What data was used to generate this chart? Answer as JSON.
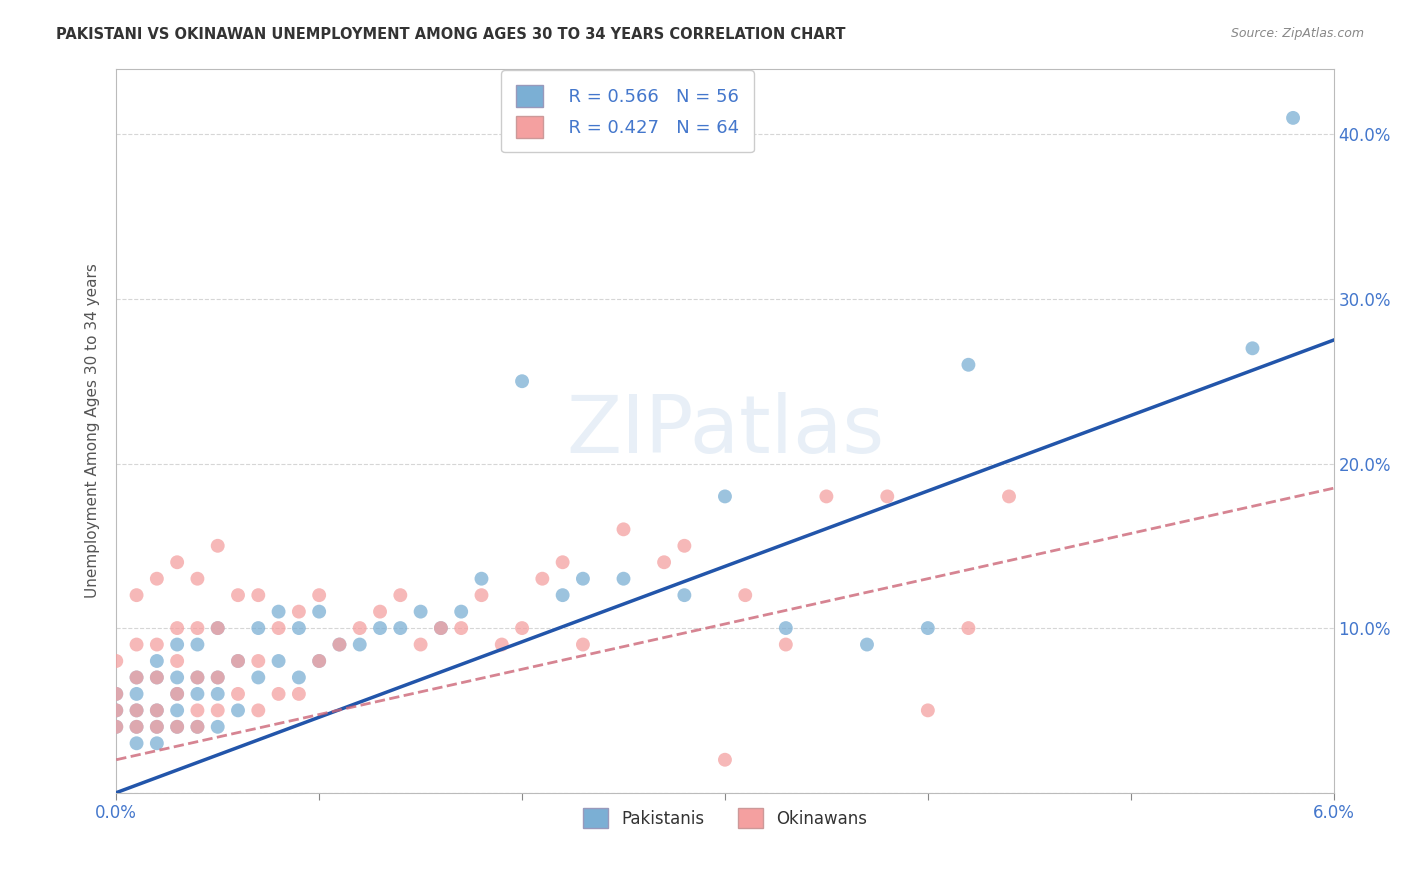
{
  "title": "PAKISTANI VS OKINAWAN UNEMPLOYMENT AMONG AGES 30 TO 34 YEARS CORRELATION CHART",
  "source": "Source: ZipAtlas.com",
  "ylabel_text": "Unemployment Among Ages 30 to 34 years",
  "x_min": 0.0,
  "x_max": 0.06,
  "y_min": 0.0,
  "y_max": 0.44,
  "x_ticks": [
    0.0,
    0.01,
    0.02,
    0.03,
    0.04,
    0.05,
    0.06
  ],
  "x_tick_labels": [
    "0.0%",
    "",
    "",
    "",
    "",
    "",
    "6.0%"
  ],
  "y_ticks": [
    0.0,
    0.1,
    0.2,
    0.3,
    0.4
  ],
  "y_tick_labels_right": [
    "",
    "10.0%",
    "20.0%",
    "30.0%",
    "40.0%"
  ],
  "blue_color": "#7BAFD4",
  "blue_line_color": "#2255AA",
  "pink_color": "#F4A0A0",
  "pink_line_color": "#CC6677",
  "legend_r1": "R = 0.566",
  "legend_n1": "N = 56",
  "legend_r2": "R = 0.427",
  "legend_n2": "N = 64",
  "legend_label1": "Pakistanis",
  "legend_label2": "Okinawans",
  "r1": 0.566,
  "r2": 0.427,
  "blue_line_x": [
    0.0,
    0.06
  ],
  "blue_line_y": [
    0.0,
    0.275
  ],
  "pink_line_x": [
    0.0,
    0.06
  ],
  "pink_line_y": [
    0.02,
    0.185
  ],
  "blue_scatter_x": [
    0.0,
    0.0,
    0.0,
    0.001,
    0.001,
    0.001,
    0.001,
    0.001,
    0.002,
    0.002,
    0.002,
    0.002,
    0.002,
    0.003,
    0.003,
    0.003,
    0.003,
    0.003,
    0.004,
    0.004,
    0.004,
    0.004,
    0.005,
    0.005,
    0.005,
    0.005,
    0.006,
    0.006,
    0.007,
    0.007,
    0.008,
    0.008,
    0.009,
    0.009,
    0.01,
    0.01,
    0.011,
    0.012,
    0.013,
    0.014,
    0.015,
    0.016,
    0.017,
    0.018,
    0.02,
    0.022,
    0.023,
    0.025,
    0.028,
    0.03,
    0.033,
    0.037,
    0.04,
    0.042,
    0.056,
    0.058
  ],
  "blue_scatter_y": [
    0.04,
    0.05,
    0.06,
    0.03,
    0.04,
    0.05,
    0.06,
    0.07,
    0.03,
    0.04,
    0.05,
    0.07,
    0.08,
    0.04,
    0.05,
    0.06,
    0.07,
    0.09,
    0.04,
    0.06,
    0.07,
    0.09,
    0.04,
    0.06,
    0.07,
    0.1,
    0.05,
    0.08,
    0.07,
    0.1,
    0.08,
    0.11,
    0.07,
    0.1,
    0.08,
    0.11,
    0.09,
    0.09,
    0.1,
    0.1,
    0.11,
    0.1,
    0.11,
    0.13,
    0.25,
    0.12,
    0.13,
    0.13,
    0.12,
    0.18,
    0.1,
    0.09,
    0.1,
    0.26,
    0.27,
    0.41
  ],
  "pink_scatter_x": [
    0.0,
    0.0,
    0.0,
    0.0,
    0.001,
    0.001,
    0.001,
    0.001,
    0.001,
    0.002,
    0.002,
    0.002,
    0.002,
    0.002,
    0.003,
    0.003,
    0.003,
    0.003,
    0.003,
    0.004,
    0.004,
    0.004,
    0.004,
    0.004,
    0.005,
    0.005,
    0.005,
    0.005,
    0.006,
    0.006,
    0.006,
    0.007,
    0.007,
    0.007,
    0.008,
    0.008,
    0.009,
    0.009,
    0.01,
    0.01,
    0.011,
    0.012,
    0.013,
    0.014,
    0.015,
    0.016,
    0.017,
    0.018,
    0.019,
    0.02,
    0.021,
    0.022,
    0.023,
    0.025,
    0.027,
    0.028,
    0.03,
    0.031,
    0.033,
    0.035,
    0.038,
    0.04,
    0.042,
    0.044
  ],
  "pink_scatter_y": [
    0.04,
    0.05,
    0.06,
    0.08,
    0.04,
    0.05,
    0.07,
    0.09,
    0.12,
    0.04,
    0.05,
    0.07,
    0.09,
    0.13,
    0.04,
    0.06,
    0.08,
    0.1,
    0.14,
    0.04,
    0.05,
    0.07,
    0.1,
    0.13,
    0.05,
    0.07,
    0.1,
    0.15,
    0.06,
    0.08,
    0.12,
    0.05,
    0.08,
    0.12,
    0.06,
    0.1,
    0.06,
    0.11,
    0.08,
    0.12,
    0.09,
    0.1,
    0.11,
    0.12,
    0.09,
    0.1,
    0.1,
    0.12,
    0.09,
    0.1,
    0.13,
    0.14,
    0.09,
    0.16,
    0.14,
    0.15,
    0.02,
    0.12,
    0.09,
    0.18,
    0.18,
    0.05,
    0.1,
    0.18
  ],
  "background_color": "#ffffff",
  "grid_color": "#cccccc",
  "tick_color": "#4477CC"
}
